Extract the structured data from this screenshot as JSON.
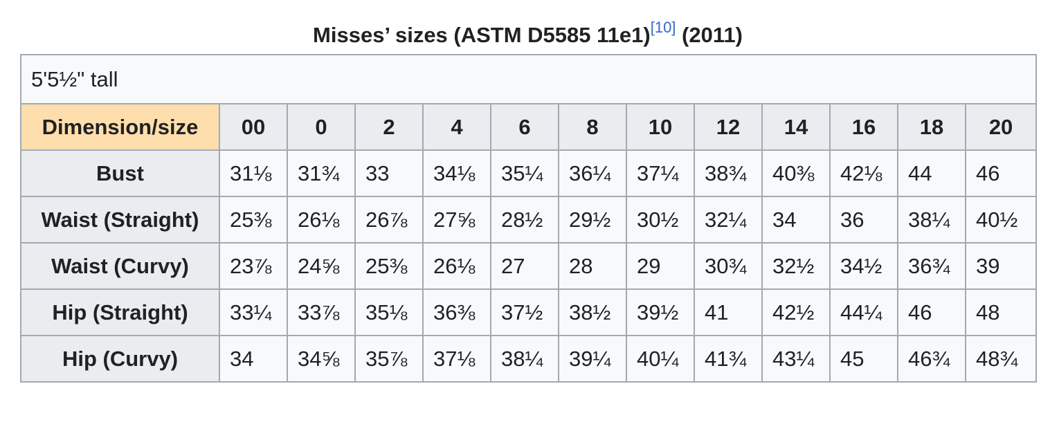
{
  "caption": {
    "title": "Misses’ sizes (ASTM D5585 11e1)",
    "ref": "[10]",
    "year": " (2011)"
  },
  "note": "5'5½\" tall",
  "corner": "Dimension/size",
  "sizes": [
    "00",
    "0",
    "2",
    "4",
    "6",
    "8",
    "10",
    "12",
    "14",
    "16",
    "18",
    "20"
  ],
  "rows": [
    {
      "label": "Bust",
      "values": [
        "31⅛",
        "31¾",
        "33",
        "34⅛",
        "35¼",
        "36¼",
        "37¼",
        "38¾",
        "40⅜",
        "42⅛",
        "44",
        "46"
      ]
    },
    {
      "label": "Waist (Straight)",
      "values": [
        "25⅜",
        "26⅛",
        "26⅞",
        "27⅝",
        "28½",
        "29½",
        "30½",
        "32¼",
        "34",
        "36",
        "38¼",
        "40½"
      ]
    },
    {
      "label": "Waist (Curvy)",
      "values": [
        "23⅞",
        "24⅝",
        "25⅜",
        "26⅛",
        "27",
        "28",
        "29",
        "30¾",
        "32½",
        "34½",
        "36¾",
        "39"
      ]
    },
    {
      "label": "Hip (Straight)",
      "values": [
        "33¼",
        "33⅞",
        "35⅛",
        "36⅜",
        "37½",
        "38½",
        "39½",
        "41",
        "42½",
        "44¼",
        "46",
        "48"
      ]
    },
    {
      "label": "Hip (Curvy)",
      "values": [
        "34",
        "34⅝",
        "35⅞",
        "37⅛",
        "38¼",
        "39¼",
        "40¼",
        "41¾",
        "43¼",
        "45",
        "46¾",
        "48¾"
      ]
    }
  ]
}
